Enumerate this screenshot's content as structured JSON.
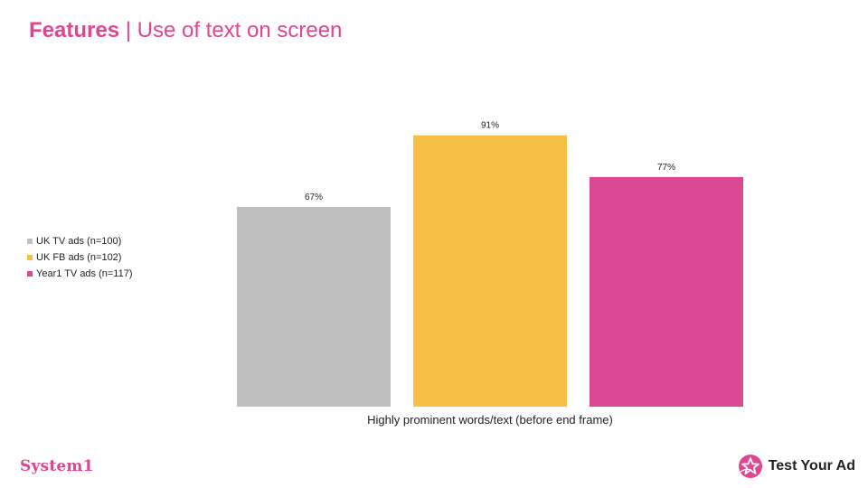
{
  "header": {
    "title_bold": "Features",
    "separator": "|",
    "title_rest": "Use of text on screen"
  },
  "colors": {
    "accent": "#e0468f"
  },
  "chart_data": {
    "type": "bar",
    "categories": [
      "Highly prominent words/text (before end frame)"
    ],
    "series": [
      {
        "name": "UK TV ads (n=100)",
        "values": [
          67
        ],
        "color": "#bfbfbf",
        "label": "67%"
      },
      {
        "name": "UK FB ads (n=102)",
        "values": [
          91
        ],
        "color": "#f5c043",
        "label": "91%"
      },
      {
        "name": "Year1 TV ads (n=117)",
        "values": [
          77
        ],
        "color": "#dc4894",
        "label": "77%"
      }
    ],
    "ylim": [
      0,
      100
    ],
    "grid": false,
    "legend_placement": "left"
  },
  "footer": {
    "left_logo": "System1",
    "right_logo": "Test Your Ad",
    "right_logo_icon": "star-badge-icon"
  }
}
